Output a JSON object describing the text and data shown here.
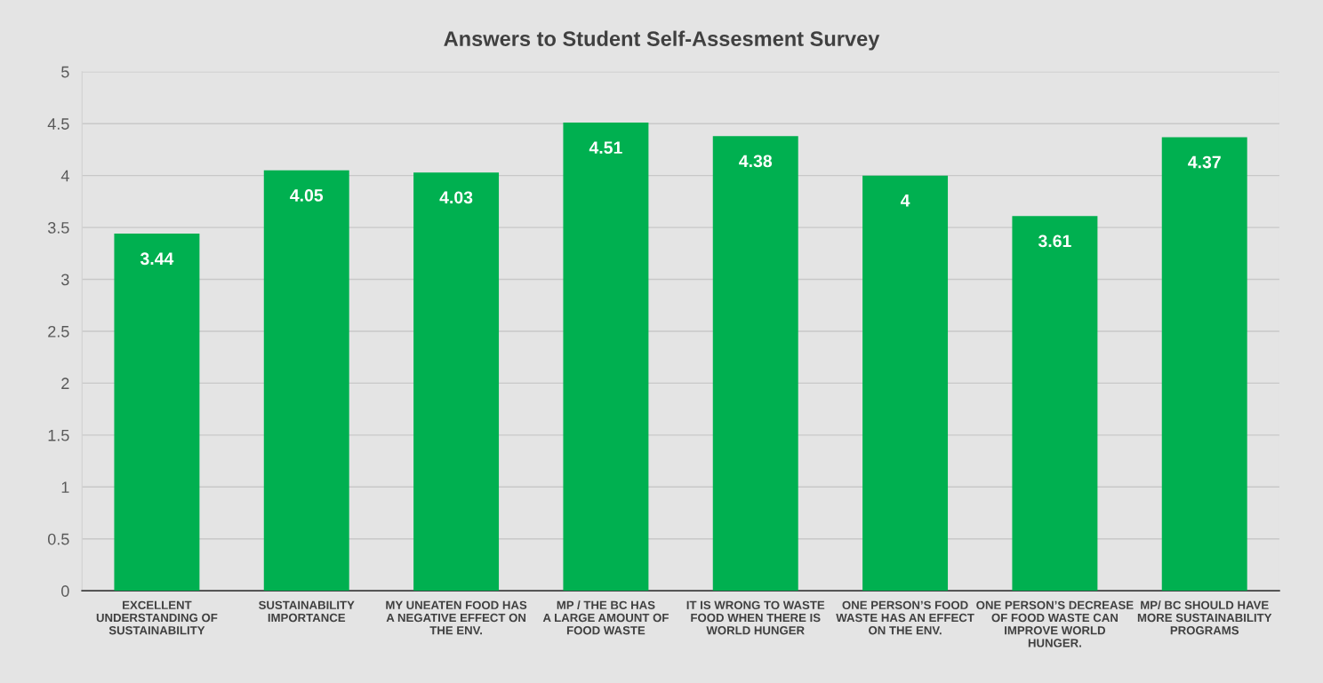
{
  "chart_data": {
    "type": "bar",
    "title": "Answers to Student Self-Assesment Survey",
    "categories": [
      "EXCELLENT\nUNDERSTANDING OF\nSUSTAINABILITY",
      "SUSTAINABILITY\nIMPORTANCE",
      "MY UNEATEN FOOD HAS\nA NEGATIVE EFFECT ON\nTHE ENV.",
      "MP / THE BC HAS\nA LARGE AMOUNT OF\nFOOD WASTE",
      "IT IS WRONG TO WASTE\nFOOD WHEN THERE IS\nWORLD HUNGER",
      "ONE PERSON’S FOOD\nWASTE HAS AN EFFECT\nON THE ENV.",
      "ONE PERSON’S DECREASE\nOF FOOD WASTE CAN\nIMPROVE WORLD\nHUNGER.",
      "MP/ BC SHOULD HAVE\nMORE SUSTAINABILITY\nPROGRAMS"
    ],
    "values": [
      3.44,
      4.05,
      4.03,
      4.51,
      4.38,
      4,
      3.61,
      4.37
    ],
    "color": "#00b050",
    "ylim": [
      0,
      5
    ],
    "yticks": [
      0,
      0.5,
      1,
      1.5,
      2,
      2.5,
      3,
      3.5,
      4,
      4.5,
      5
    ],
    "grid": "y",
    "data_labels": true
  }
}
